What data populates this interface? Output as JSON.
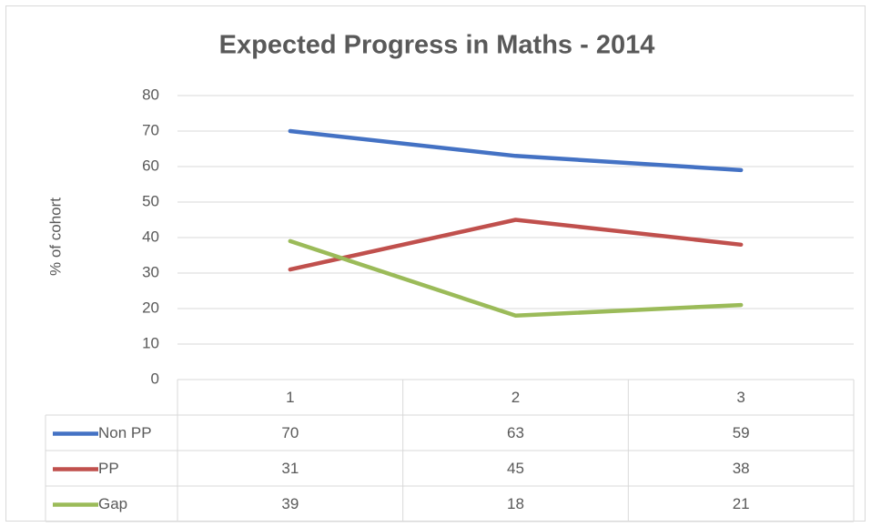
{
  "chart_data": {
    "type": "line",
    "title": "Expected Progress in Maths - 2014",
    "y_label": "% of cohort",
    "categories": [
      "1",
      "2",
      "3"
    ],
    "series": [
      {
        "name": "Non PP",
        "color": "#4472c4",
        "values": [
          70,
          63,
          59
        ]
      },
      {
        "name": "PP",
        "color": "#c0504d",
        "values": [
          31,
          45,
          38
        ]
      },
      {
        "name": "Gap",
        "color": "#9bbb59",
        "values": [
          39,
          18,
          21
        ]
      }
    ],
    "ylim": [
      0,
      80
    ],
    "yticks": [
      0,
      10,
      20,
      30,
      40,
      50,
      60,
      70,
      80
    ],
    "grid": true,
    "legend": "data-table"
  }
}
